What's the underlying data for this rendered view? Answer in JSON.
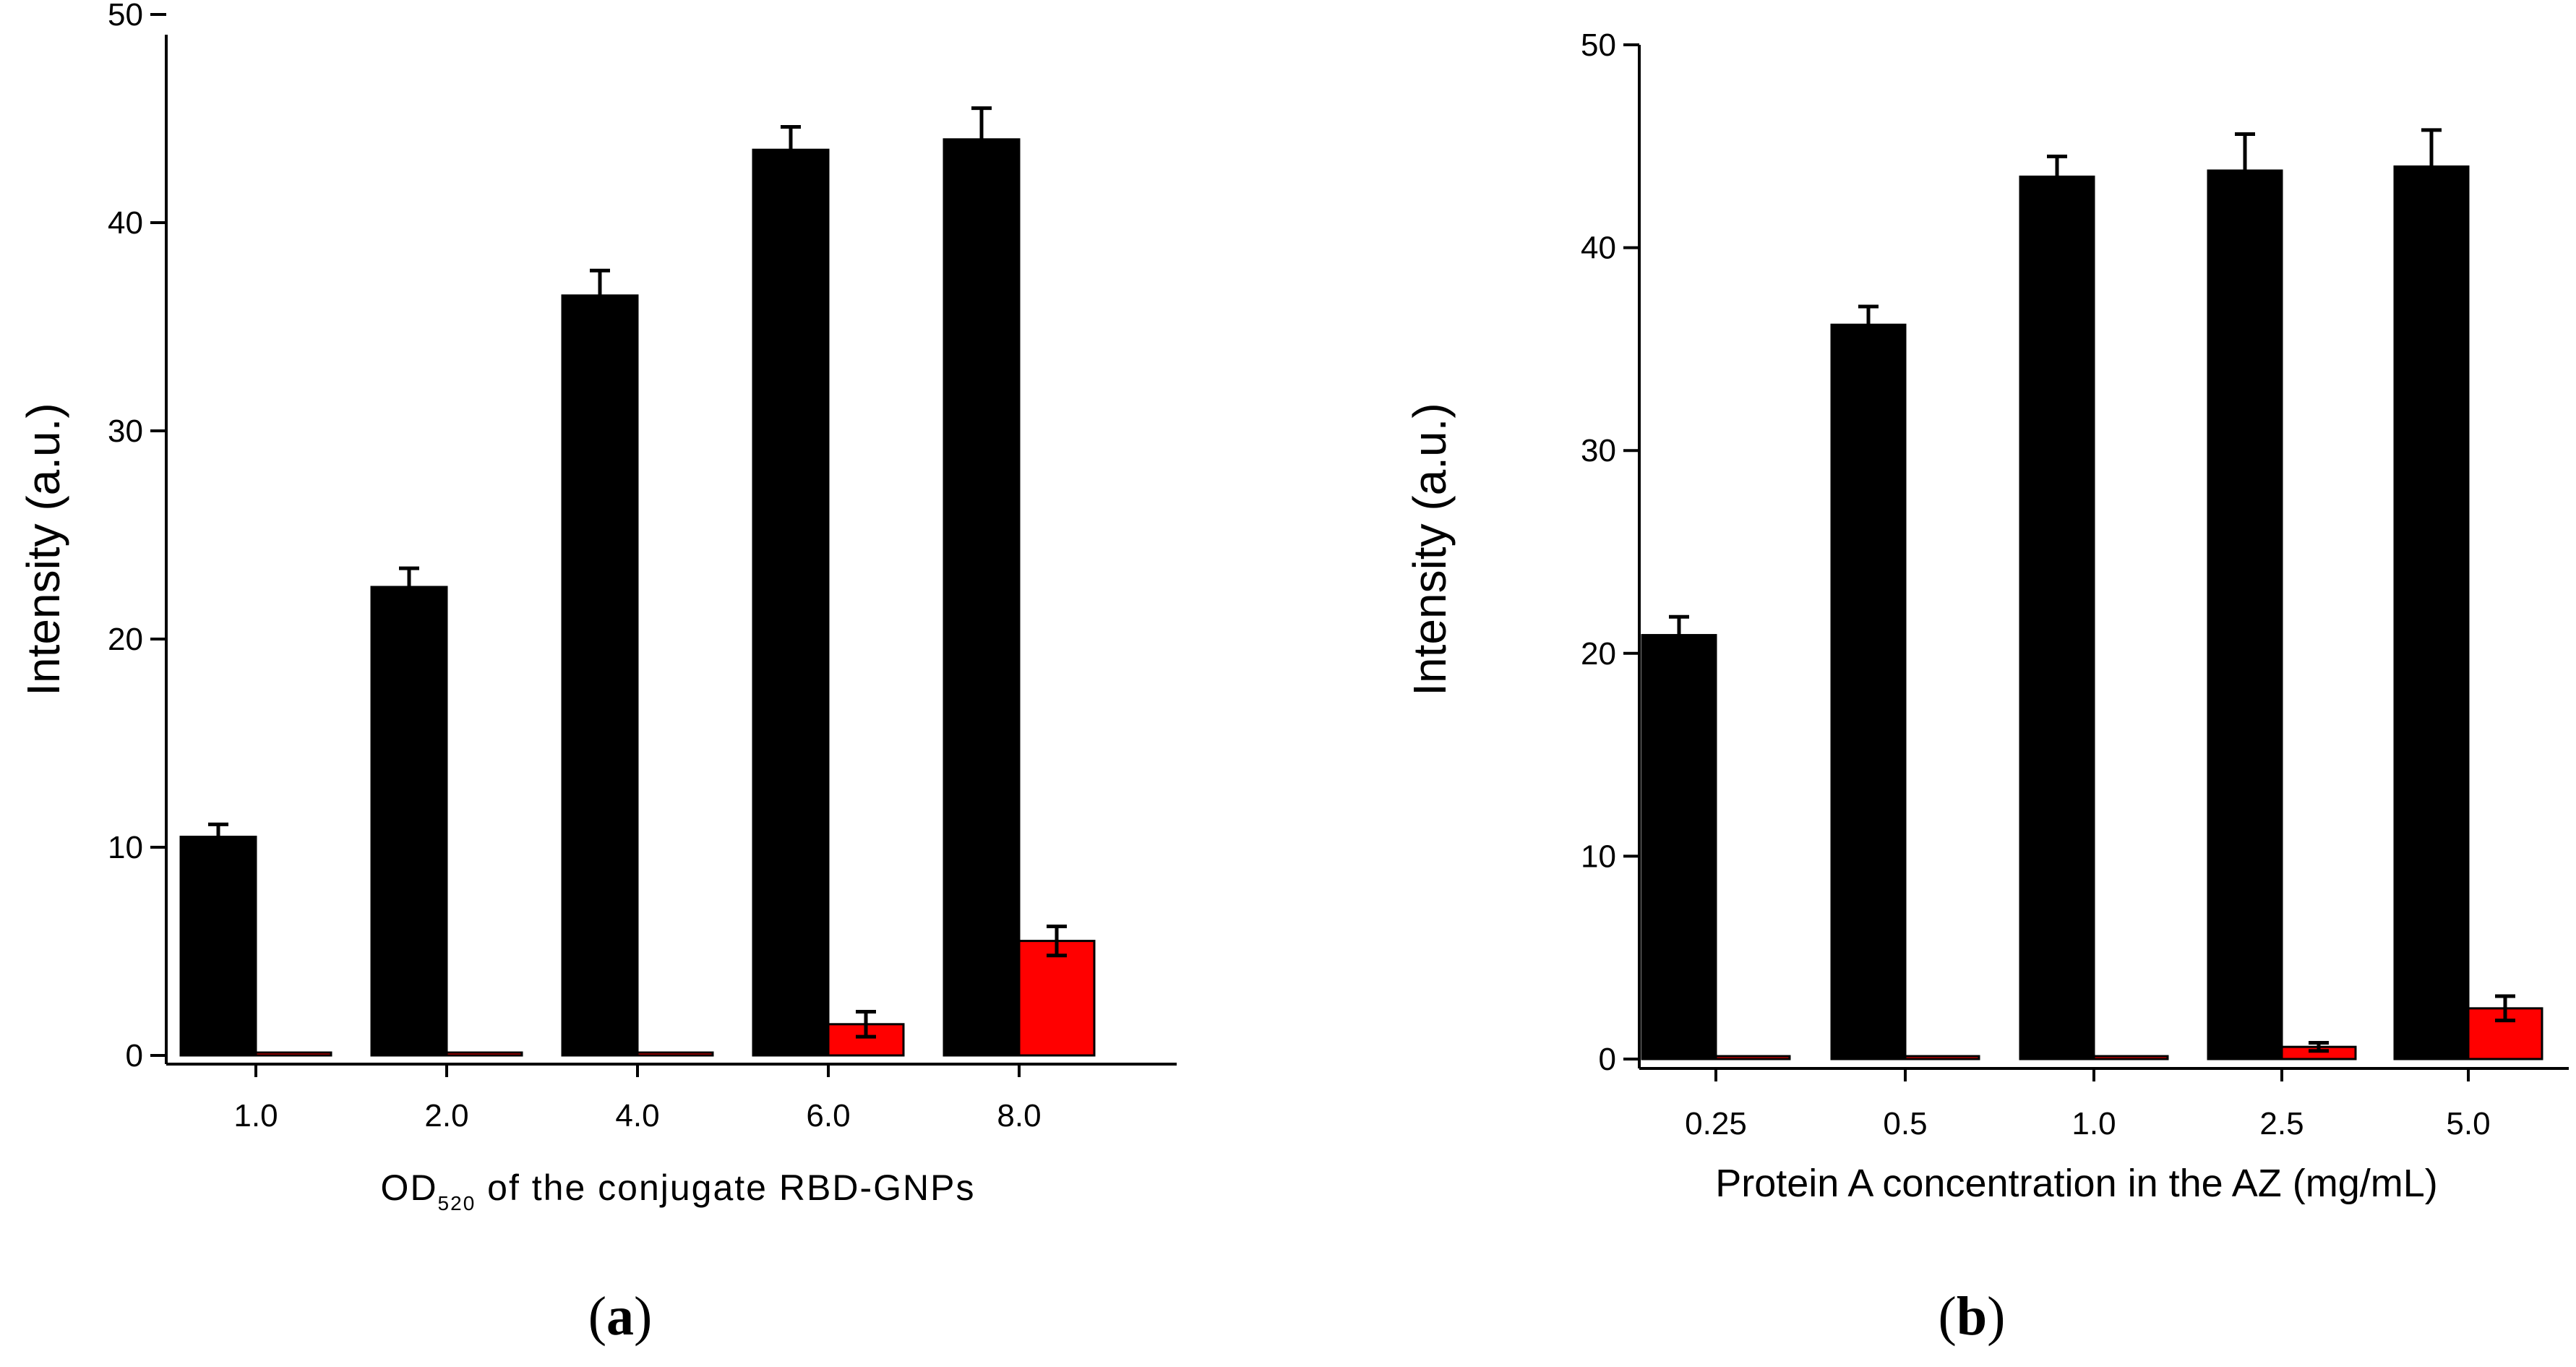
{
  "chart_data": [
    {
      "type": "bar",
      "panel_label_open": "(",
      "panel_label_letter": "a",
      "panel_label_close": ")",
      "title": "",
      "xlabel_main": "OD",
      "xlabel_sub": "520",
      "xlabel_rest": " of the conjugate RBD-GNPs",
      "ylabel": "Intensity (a.u.)",
      "ylim": [
        0,
        50
      ],
      "yticks": [
        "0",
        "10",
        "20",
        "30",
        "40",
        "50"
      ],
      "categories": [
        "1.0",
        "2.0",
        "4.0",
        "6.0",
        "8.0"
      ],
      "series": [
        {
          "name": "black",
          "color": "#000000",
          "values": [
            10.5,
            22.5,
            36.5,
            43.5,
            44.0
          ],
          "errors": [
            0.6,
            0.9,
            1.2,
            1.1,
            1.5
          ]
        },
        {
          "name": "red",
          "color": "#ff0000",
          "values": [
            0.1,
            0.1,
            0.1,
            1.5,
            5.5
          ],
          "errors": [
            0,
            0,
            0,
            0.6,
            0.7
          ]
        }
      ]
    },
    {
      "type": "bar",
      "panel_label_open": "(",
      "panel_label_letter": "b",
      "panel_label_close": ")",
      "title": "",
      "xlabel": "Protein A concentration in the AZ (mg/mL)",
      "ylabel": "Intensity (a.u.)",
      "ylim": [
        0,
        50
      ],
      "yticks": [
        "0",
        "10",
        "20",
        "30",
        "40",
        "50"
      ],
      "categories": [
        "0.25",
        "0.5",
        "1.0",
        "2.5",
        "5.0"
      ],
      "series": [
        {
          "name": "black",
          "color": "#000000",
          "values": [
            20.9,
            36.2,
            43.5,
            43.8,
            44.0
          ],
          "errors": [
            0.9,
            0.9,
            1.0,
            1.8,
            1.8
          ]
        },
        {
          "name": "red",
          "color": "#ff0000",
          "values": [
            0.1,
            0.1,
            0.1,
            0.6,
            2.5
          ],
          "errors": [
            0,
            0,
            0,
            0.2,
            0.6
          ]
        }
      ]
    }
  ]
}
